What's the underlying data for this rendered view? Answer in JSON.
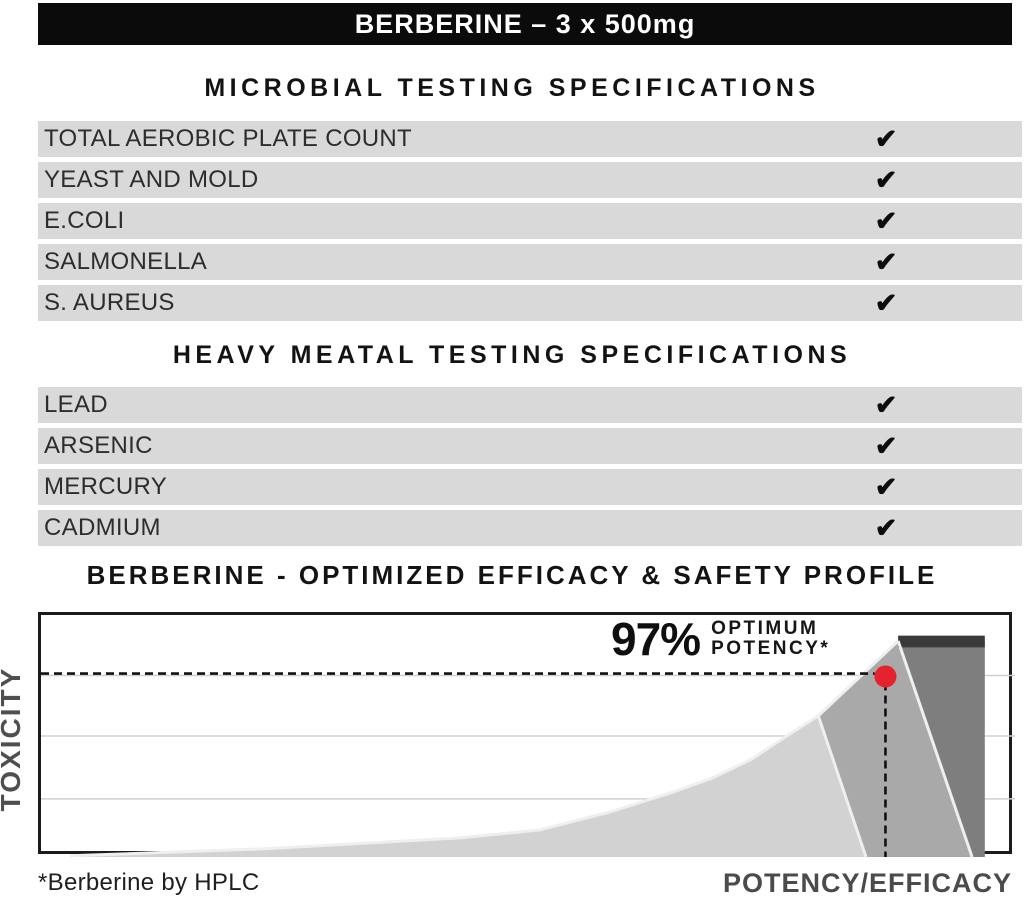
{
  "header": {
    "title": "BERBERINE – 3 x 500mg"
  },
  "colors": {
    "header_bg": "#0b0b0b",
    "row_bg": "#d9d9d9",
    "accent_red": "#e4232e",
    "axis_label_gray": "#4f4f4f"
  },
  "icons": {
    "check": "✔"
  },
  "microbial": {
    "heading": "MICROBIAL TESTING SPECIFICATIONS",
    "rows": [
      {
        "label": "TOTAL AEROBIC PLATE COUNT",
        "check": "✔"
      },
      {
        "label": "YEAST AND MOLD",
        "check": "✔"
      },
      {
        "label": "E.COLI",
        "check": "✔"
      },
      {
        "label": "SALMONELLA",
        "check": "✔"
      },
      {
        "label": "S. AUREUS",
        "check": "✔"
      }
    ]
  },
  "heavy_metal": {
    "heading": "HEAVY MEATAL TESTING SPECIFICATIONS",
    "rows": [
      {
        "label": "LEAD",
        "check": "✔"
      },
      {
        "label": "ARSENIC",
        "check": "✔"
      },
      {
        "label": "MERCURY",
        "check": "✔"
      },
      {
        "label": "CADMIUM",
        "check": "✔"
      }
    ]
  },
  "profile": {
    "heading": "BERBERINE - OPTIMIZED EFFICACY & SAFETY PROFILE",
    "annotation_value": "97%",
    "annotation_line1": "OPTIMUM",
    "annotation_line2": "POTENCY*",
    "y_axis_label": "TOXICITY",
    "x_axis_label": "POTENCY/EFFICACY",
    "footnote": "*Berberine by HPLC"
  },
  "chart_data": {
    "type": "area",
    "title": "BERBERINE - OPTIMIZED EFFICACY & SAFETY PROFILE",
    "xlabel": "POTENCY/EFFICACY",
    "ylabel": "TOXICITY",
    "x_range": [
      0,
      100
    ],
    "y_range": [
      0,
      100
    ],
    "grid": "horizontal",
    "gridlines_y": [
      24,
      50,
      75
    ],
    "gridline_color": "#d0d0d0",
    "zones": [
      {
        "name": "toxicity-rise-curve",
        "color": "#d2d2d2",
        "points": [
          [
            3,
            0.5
          ],
          [
            22.5,
            3.3
          ],
          [
            43,
            7.9
          ],
          [
            51.2,
            11.2
          ],
          [
            58.4,
            18.6
          ],
          [
            64.6,
            26.4
          ],
          [
            68.9,
            32.6
          ],
          [
            73,
            40.5
          ],
          [
            76.4,
            49.6
          ],
          [
            79.8,
            58.3
          ],
          [
            84.7,
            0
          ],
          [
            3,
            0
          ]
        ]
      },
      {
        "name": "optimum-band",
        "color": "#a9a9a9",
        "points": [
          [
            79.8,
            58.3
          ],
          [
            88,
            89.3
          ],
          [
            95.6,
            0
          ],
          [
            84.7,
            0
          ]
        ]
      },
      {
        "name": "overdose-zone",
        "color": "#7e7e7e",
        "points": [
          [
            88,
            89.3
          ],
          [
            96.9,
            89.3
          ],
          [
            96.9,
            0
          ],
          [
            95.6,
            0
          ]
        ]
      },
      {
        "name": "overdose-cap",
        "color": "#3a3a3a",
        "points": [
          [
            88,
            91.5
          ],
          [
            96.9,
            91.5
          ],
          [
            96.9,
            86.6
          ],
          [
            88,
            86.6
          ]
        ]
      }
    ],
    "highlight_edges": [
      [
        [
          3,
          0.5
        ],
        [
          22.5,
          3.3
        ],
        [
          43,
          7.9
        ],
        [
          51.2,
          11.2
        ],
        [
          58.4,
          18.6
        ],
        [
          64.6,
          26.4
        ],
        [
          68.9,
          32.6
        ],
        [
          73,
          40.5
        ],
        [
          76.4,
          49.6
        ],
        [
          79.8,
          58.3
        ],
        [
          84.7,
          0
        ]
      ],
      [
        [
          79.8,
          58.3
        ],
        [
          88,
          89.3
        ]
      ],
      [
        [
          88,
          89.3
        ],
        [
          95.6,
          0
        ]
      ]
    ],
    "edge_color": "#efefef",
    "threshold_line": {
      "y": 75.8,
      "x_start": 0,
      "x_end": 85.6,
      "style": "dashed",
      "color": "#111111"
    },
    "marker": {
      "x": 86.7,
      "y": 74.6,
      "radius": 11,
      "color": "#e4232e",
      "label": "97% OPTIMUM POTENCY*",
      "drop_line": "dashed"
    }
  }
}
